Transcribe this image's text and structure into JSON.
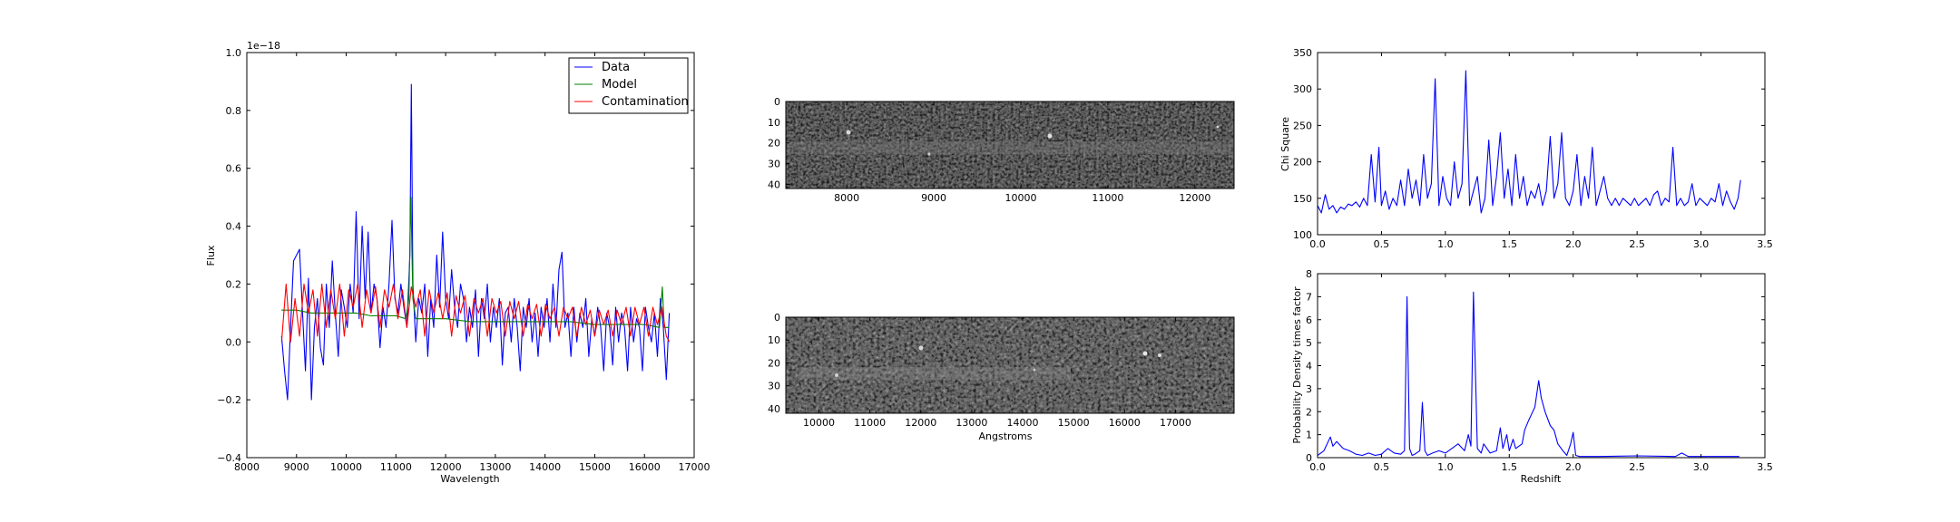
{
  "chart_data": [
    {
      "id": "spectrum",
      "type": "line",
      "title": "",
      "xlabel": "Wavelength",
      "ylabel": "Flux",
      "y_offset_text": "1e−18",
      "xlim": [
        8000,
        17000
      ],
      "ylim": [
        -0.4,
        1.0
      ],
      "xticks": [
        8000,
        9000,
        10000,
        11000,
        12000,
        13000,
        14000,
        15000,
        16000,
        17000
      ],
      "yticks": [
        -0.4,
        -0.2,
        0.0,
        0.2,
        0.4,
        0.6,
        0.8,
        1.0
      ],
      "ytick_labels": [
        "−0.4",
        "−0.2",
        "0.0",
        "0.2",
        "0.4",
        "0.6",
        "0.8",
        "1.0"
      ],
      "grid": false,
      "legend": "top-right",
      "series": [
        {
          "name": "Data",
          "color": "#0000ff",
          "x": [
            8700,
            8760,
            8820,
            8880,
            8940,
            9000,
            9060,
            9120,
            9180,
            9240,
            9300,
            9360,
            9420,
            9480,
            9540,
            9600,
            9660,
            9720,
            9780,
            9840,
            9900,
            9960,
            10020,
            10080,
            10140,
            10200,
            10260,
            10320,
            10380,
            10440,
            10500,
            10560,
            10620,
            10680,
            10740,
            10800,
            10860,
            10920,
            10980,
            11040,
            11100,
            11160,
            11220,
            11280,
            11310,
            11340,
            11400,
            11460,
            11520,
            11580,
            11640,
            11700,
            11760,
            11820,
            11880,
            11940,
            12000,
            12060,
            12120,
            12180,
            12240,
            12300,
            12360,
            12420,
            12480,
            12540,
            12600,
            12660,
            12720,
            12780,
            12840,
            12900,
            12960,
            13020,
            13080,
            13140,
            13200,
            13260,
            13320,
            13380,
            13440,
            13500,
            13560,
            13620,
            13680,
            13740,
            13800,
            13860,
            13920,
            13980,
            14040,
            14100,
            14160,
            14220,
            14280,
            14340,
            14400,
            14460,
            14520,
            14580,
            14640,
            14700,
            14760,
            14820,
            14880,
            14940,
            15000,
            15060,
            15120,
            15180,
            15240,
            15300,
            15360,
            15420,
            15480,
            15540,
            15600,
            15660,
            15720,
            15780,
            15840,
            15900,
            15960,
            16020,
            16080,
            16140,
            16200,
            16260,
            16320,
            16380,
            16440,
            16500
          ],
          "y": [
            0.02,
            -0.1,
            -0.2,
            0.05,
            0.28,
            0.3,
            0.32,
            0.1,
            -0.1,
            0.22,
            -0.2,
            0.05,
            0.15,
            -0.02,
            -0.08,
            0.2,
            0.05,
            0.28,
            0.1,
            -0.05,
            0.18,
            0.12,
            0.05,
            0.2,
            0.1,
            0.45,
            0.08,
            0.4,
            0.15,
            0.38,
            0.1,
            0.2,
            0.15,
            -0.02,
            0.12,
            0.05,
            0.2,
            0.42,
            0.15,
            0.1,
            0.2,
            0.12,
            0.05,
            0.3,
            0.89,
            0.2,
            0.0,
            0.15,
            0.1,
            0.2,
            -0.05,
            0.15,
            0.05,
            0.3,
            0.12,
            0.38,
            0.15,
            0.08,
            0.25,
            0.12,
            0.05,
            0.2,
            0.15,
            0.0,
            0.12,
            0.05,
            0.18,
            -0.05,
            0.15,
            0.08,
            0.2,
            0.0,
            0.12,
            0.05,
            0.15,
            -0.08,
            0.1,
            0.12,
            0.0,
            0.15,
            0.05,
            -0.1,
            0.12,
            0.05,
            0.15,
            0.0,
            0.1,
            -0.05,
            0.12,
            0.05,
            0.15,
            0.0,
            0.2,
            0.05,
            0.25,
            0.31,
            0.05,
            0.1,
            -0.05,
            0.12,
            0.0,
            0.1,
            0.05,
            0.15,
            -0.05,
            0.08,
            0.02,
            0.12,
            0.05,
            -0.1,
            0.1,
            0.05,
            -0.08,
            0.12,
            0.0,
            0.1,
            0.05,
            -0.1,
            0.12,
            0.0,
            0.08,
            0.05,
            -0.1,
            0.12,
            0.05,
            0.0,
            0.1,
            -0.05,
            0.15,
            0.05,
            -0.13,
            0.1
          ]
        },
        {
          "name": "Model",
          "color": "#008000",
          "x": [
            8700,
            9000,
            9300,
            9600,
            9900,
            10200,
            10500,
            10800,
            11000,
            11200,
            11260,
            11300,
            11340,
            11400,
            11600,
            11800,
            12000,
            12500,
            13000,
            13500,
            14000,
            14500,
            15000,
            15500,
            16000,
            16300,
            16360,
            16400,
            16500
          ],
          "y": [
            0.11,
            0.11,
            0.1,
            0.1,
            0.1,
            0.1,
            0.09,
            0.09,
            0.09,
            0.08,
            0.15,
            0.5,
            0.15,
            0.08,
            0.08,
            0.08,
            0.08,
            0.07,
            0.07,
            0.07,
            0.07,
            0.07,
            0.06,
            0.06,
            0.06,
            0.05,
            0.19,
            0.05,
            0.05
          ]
        },
        {
          "name": "Contamination",
          "color": "#ff0000",
          "x": [
            8700,
            8790,
            8880,
            8970,
            9060,
            9150,
            9240,
            9330,
            9420,
            9510,
            9600,
            9690,
            9780,
            9870,
            9960,
            10050,
            10140,
            10230,
            10320,
            10410,
            10500,
            10590,
            10680,
            10770,
            10860,
            10950,
            11040,
            11130,
            11220,
            11310,
            11400,
            11490,
            11580,
            11670,
            11760,
            11850,
            11940,
            12030,
            12120,
            12210,
            12300,
            12390,
            12480,
            12570,
            12660,
            12750,
            12840,
            12930,
            13020,
            13110,
            13200,
            13290,
            13380,
            13470,
            13560,
            13650,
            13740,
            13830,
            13920,
            14010,
            14100,
            14190,
            14280,
            14370,
            14460,
            14550,
            14640,
            14730,
            14820,
            14910,
            15000,
            15090,
            15180,
            15270,
            15360,
            15450,
            15540,
            15630,
            15720,
            15810,
            15900,
            15990,
            16080,
            16170,
            16260,
            16350,
            16440,
            16500
          ],
          "y": [
            0.0,
            0.2,
            0.0,
            0.15,
            0.02,
            0.2,
            0.1,
            0.18,
            0.02,
            0.2,
            0.05,
            0.18,
            0.08,
            0.2,
            0.02,
            0.18,
            0.12,
            0.2,
            0.05,
            0.18,
            0.1,
            0.19,
            0.05,
            0.18,
            0.12,
            0.2,
            0.08,
            0.18,
            0.05,
            0.19,
            0.12,
            0.18,
            0.02,
            0.18,
            0.1,
            0.17,
            0.08,
            0.17,
            0.02,
            0.16,
            0.1,
            0.16,
            0.02,
            0.15,
            0.1,
            0.15,
            0.02,
            0.15,
            0.1,
            0.14,
            0.02,
            0.14,
            0.08,
            0.14,
            0.02,
            0.13,
            0.08,
            0.13,
            0.02,
            0.13,
            0.08,
            0.12,
            0.02,
            0.12,
            0.08,
            0.12,
            0.02,
            0.12,
            0.06,
            0.11,
            0.02,
            0.11,
            0.06,
            0.11,
            0.02,
            0.11,
            0.06,
            0.12,
            0.02,
            0.12,
            0.06,
            0.12,
            0.02,
            0.12,
            0.06,
            0.12,
            0.02,
            0.0
          ]
        }
      ]
    },
    {
      "id": "image-top",
      "type": "heatmap",
      "title": "",
      "xlabel": "",
      "ylabel": "",
      "xlim": [
        7300,
        12450
      ],
      "ylim": [
        42,
        0
      ],
      "xticks": [
        8000,
        9000,
        10000,
        11000,
        12000
      ],
      "yticks": [
        0,
        10,
        20,
        30,
        40
      ],
      "colormap": "gray"
    },
    {
      "id": "image-bottom",
      "type": "heatmap",
      "title": "",
      "xlabel": "Angstroms",
      "ylabel": "",
      "xlim": [
        9350,
        18150
      ],
      "ylim": [
        42,
        0
      ],
      "xticks": [
        10000,
        11000,
        12000,
        13000,
        14000,
        15000,
        16000,
        17000
      ],
      "yticks": [
        0,
        10,
        20,
        30,
        40
      ],
      "colormap": "gray"
    },
    {
      "id": "chi-square",
      "type": "line",
      "title": "",
      "xlabel": "",
      "ylabel": "Chi Square",
      "xlim": [
        0.0,
        3.5
      ],
      "ylim": [
        100,
        350
      ],
      "xticks": [
        0.0,
        0.5,
        1.0,
        1.5,
        2.0,
        2.5,
        3.0,
        3.5
      ],
      "yticks": [
        100,
        150,
        200,
        250,
        300,
        350
      ],
      "grid": false,
      "series": [
        {
          "color": "#0000ff",
          "x": [
            0.0,
            0.03,
            0.06,
            0.09,
            0.12,
            0.15,
            0.18,
            0.21,
            0.24,
            0.27,
            0.3,
            0.33,
            0.36,
            0.39,
            0.42,
            0.45,
            0.48,
            0.5,
            0.53,
            0.56,
            0.59,
            0.62,
            0.65,
            0.68,
            0.71,
            0.74,
            0.77,
            0.8,
            0.83,
            0.86,
            0.89,
            0.92,
            0.95,
            0.98,
            1.01,
            1.04,
            1.07,
            1.1,
            1.13,
            1.16,
            1.19,
            1.22,
            1.25,
            1.28,
            1.31,
            1.34,
            1.37,
            1.4,
            1.43,
            1.46,
            1.49,
            1.52,
            1.55,
            1.58,
            1.61,
            1.64,
            1.67,
            1.7,
            1.73,
            1.76,
            1.79,
            1.82,
            1.85,
            1.88,
            1.91,
            1.94,
            1.97,
            2.0,
            2.03,
            2.06,
            2.09,
            2.12,
            2.15,
            2.18,
            2.21,
            2.24,
            2.27,
            2.3,
            2.33,
            2.36,
            2.39,
            2.42,
            2.45,
            2.48,
            2.51,
            2.54,
            2.57,
            2.6,
            2.63,
            2.66,
            2.69,
            2.72,
            2.75,
            2.78,
            2.81,
            2.84,
            2.87,
            2.9,
            2.93,
            2.96,
            2.99,
            3.02,
            3.05,
            3.08,
            3.11,
            3.14,
            3.17,
            3.2,
            3.23,
            3.26,
            3.29,
            3.31
          ],
          "y": [
            140,
            130,
            155,
            135,
            140,
            130,
            138,
            135,
            142,
            140,
            145,
            138,
            150,
            140,
            210,
            145,
            220,
            140,
            160,
            135,
            150,
            140,
            175,
            140,
            190,
            150,
            175,
            140,
            210,
            150,
            170,
            314,
            140,
            180,
            150,
            140,
            200,
            150,
            170,
            325,
            140,
            160,
            180,
            130,
            150,
            230,
            140,
            180,
            240,
            150,
            190,
            140,
            210,
            150,
            180,
            140,
            160,
            150,
            170,
            140,
            160,
            235,
            150,
            170,
            240,
            150,
            140,
            160,
            210,
            140,
            180,
            150,
            220,
            140,
            160,
            180,
            150,
            140,
            150,
            140,
            150,
            145,
            140,
            150,
            140,
            145,
            150,
            140,
            155,
            160,
            140,
            150,
            145,
            220,
            140,
            150,
            140,
            145,
            170,
            140,
            150,
            145,
            140,
            150,
            145,
            170,
            140,
            160,
            145,
            135,
            150,
            175
          ]
        }
      ]
    },
    {
      "id": "probability-density",
      "type": "line",
      "title": "",
      "xlabel": "Redshift",
      "ylabel": "Probability Density times factor",
      "xlim": [
        0.0,
        3.5
      ],
      "ylim": [
        0,
        8
      ],
      "xticks": [
        0.0,
        0.5,
        1.0,
        1.5,
        2.0,
        2.5,
        3.0,
        3.5
      ],
      "yticks": [
        0,
        1,
        2,
        3,
        4,
        5,
        6,
        7,
        8
      ],
      "grid": false,
      "series": [
        {
          "color": "#0000ff",
          "x": [
            0.0,
            0.05,
            0.1,
            0.12,
            0.15,
            0.2,
            0.25,
            0.3,
            0.35,
            0.4,
            0.45,
            0.5,
            0.55,
            0.6,
            0.65,
            0.68,
            0.7,
            0.72,
            0.74,
            0.76,
            0.8,
            0.82,
            0.84,
            0.86,
            0.9,
            0.95,
            1.0,
            1.05,
            1.1,
            1.15,
            1.18,
            1.2,
            1.22,
            1.25,
            1.28,
            1.3,
            1.35,
            1.4,
            1.43,
            1.45,
            1.48,
            1.5,
            1.53,
            1.55,
            1.6,
            1.62,
            1.65,
            1.7,
            1.73,
            1.75,
            1.78,
            1.82,
            1.85,
            1.88,
            1.92,
            1.95,
            1.98,
            2.0,
            2.02,
            2.05,
            2.2,
            2.5,
            2.8,
            2.85,
            2.9,
            3.0,
            3.3
          ],
          "y": [
            0.1,
            0.3,
            0.9,
            0.5,
            0.7,
            0.4,
            0.3,
            0.15,
            0.1,
            0.2,
            0.1,
            0.15,
            0.4,
            0.2,
            0.15,
            0.3,
            7.0,
            0.4,
            0.1,
            0.15,
            0.3,
            2.4,
            0.3,
            0.1,
            0.2,
            0.3,
            0.2,
            0.4,
            0.6,
            0.3,
            1.0,
            0.5,
            7.2,
            0.4,
            0.2,
            0.6,
            0.2,
            0.3,
            1.3,
            0.4,
            1.0,
            0.3,
            0.8,
            0.4,
            0.6,
            1.2,
            1.6,
            2.2,
            3.35,
            2.6,
            2.0,
            1.4,
            1.2,
            0.6,
            0.3,
            0.1,
            0.6,
            1.1,
            0.1,
            0.05,
            0.05,
            0.08,
            0.05,
            0.2,
            0.05,
            0.05,
            0.05
          ]
        }
      ]
    }
  ]
}
